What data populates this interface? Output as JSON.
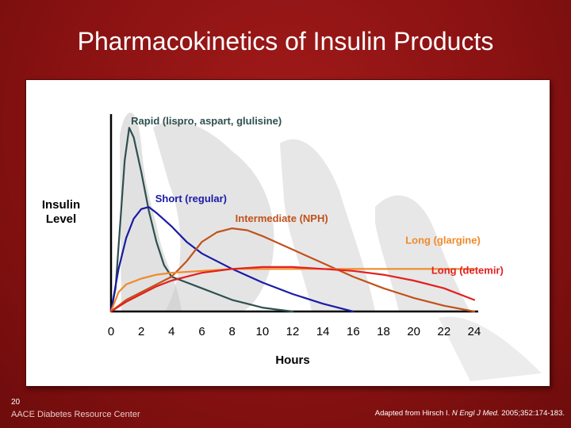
{
  "slide": {
    "title": "Pharmacokinetics of Insulin Products",
    "slide_number": "20",
    "organization": "AACE Diabetes Resource Center",
    "citation": {
      "prefix": "Adapted from Hirsch I. ",
      "journal": "N Engl J Med.",
      "suffix": " 2005;352:174-183."
    },
    "colors": {
      "background": "#8b1414",
      "panel": "#ffffff",
      "watermark": "#c9c9c9"
    }
  },
  "chart_data": {
    "type": "line",
    "title": "",
    "xlabel": "Hours",
    "ylabel": "Insulin Level",
    "xlim": [
      0,
      24
    ],
    "ylim": [
      0,
      100
    ],
    "x_ticks": [
      0,
      2,
      4,
      6,
      8,
      10,
      12,
      14,
      16,
      18,
      20,
      22,
      24
    ],
    "grid": false,
    "series": [
      {
        "name": "Rapid (lispro, aspart, glulisine)",
        "color": "#2f4f4f",
        "x": [
          0,
          0.3,
          0.6,
          0.9,
          1.2,
          1.5,
          2,
          2.5,
          3,
          3.5,
          4,
          5,
          6,
          7,
          8,
          9,
          10,
          11,
          12
        ],
        "y": [
          0,
          12,
          45,
          78,
          95,
          90,
          72,
          52,
          36,
          24,
          18,
          15,
          12,
          9,
          6,
          4,
          2,
          1,
          0
        ]
      },
      {
        "name": "Short (regular)",
        "color": "#1a1aa6",
        "x": [
          0,
          0.5,
          1,
          1.5,
          2,
          2.5,
          3,
          4,
          5,
          6,
          8,
          10,
          12,
          14,
          15.5,
          16
        ],
        "y": [
          0,
          22,
          38,
          48,
          53,
          54,
          51,
          44,
          36,
          30,
          22,
          15,
          9,
          4,
          1,
          0
        ]
      },
      {
        "name": "Intermediate (NPH)",
        "color": "#c0521a",
        "x": [
          0,
          1,
          2,
          3,
          4,
          5,
          6,
          7,
          8,
          9,
          10,
          12,
          14,
          16,
          18,
          20,
          22,
          24
        ],
        "y": [
          0,
          6,
          10,
          14,
          18,
          26,
          36,
          41,
          43,
          42,
          39,
          32,
          25,
          18,
          12,
          7,
          3,
          0
        ]
      },
      {
        "name": "Long (glargine)",
        "color": "#f08a2a",
        "x": [
          0,
          0.5,
          1,
          2,
          3,
          4,
          6,
          8,
          10,
          12,
          14,
          16,
          18,
          20,
          22,
          24
        ],
        "y": [
          0,
          10,
          14,
          17,
          19,
          20,
          21,
          22,
          22,
          22,
          22,
          22,
          22,
          22,
          22,
          22
        ]
      },
      {
        "name": "Long (detemir)",
        "color": "#e32020",
        "x": [
          0,
          1,
          2,
          3,
          4,
          5,
          6,
          8,
          10,
          12,
          14,
          16,
          18,
          20,
          22,
          24
        ],
        "y": [
          0,
          5,
          9,
          13,
          16,
          18,
          20,
          22,
          23,
          23,
          22,
          21,
          19,
          16,
          12,
          6
        ]
      }
    ]
  }
}
